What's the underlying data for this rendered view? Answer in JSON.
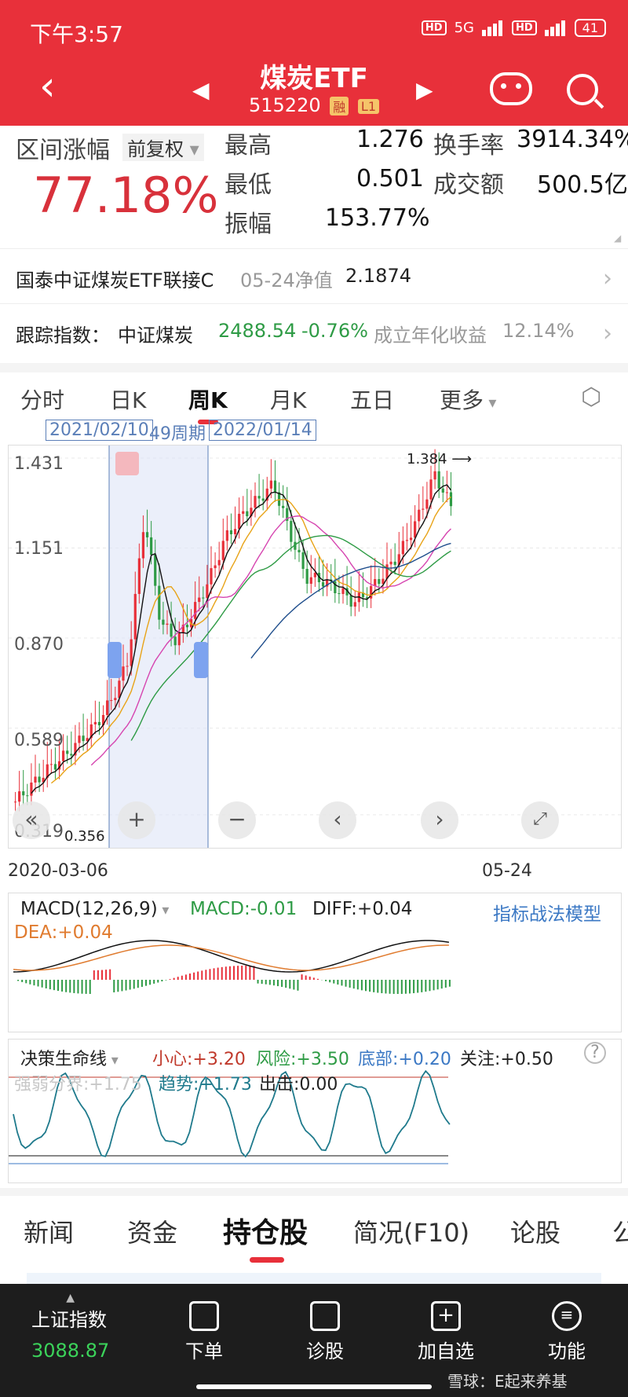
{
  "status": {
    "time": "下午3:57",
    "network1": "HD",
    "network2": "HD",
    "signal": "5G",
    "battery": "41"
  },
  "header": {
    "title": "煤炭ETF",
    "code": "515220",
    "tag1": "融",
    "tag2": "L1"
  },
  "stats": {
    "range_label": "区间涨幅",
    "adjust_label": "前复权",
    "range_change": "77.18%",
    "high_label": "最高",
    "high": "1.276",
    "low_label": "最低",
    "low": "0.501",
    "amp_label": "振幅",
    "amp": "153.77%",
    "turnover_label": "换手率",
    "turnover": "3914.34%",
    "amount_label": "成交额",
    "amount": "500.5亿"
  },
  "fund_row": {
    "name": "国泰中证煤炭ETF联接C",
    "date_label": "05-24净值",
    "nav": "2.1874"
  },
  "index_row": {
    "label": "跟踪指数：",
    "name": "中证煤炭",
    "value": "2488.54",
    "change": "-0.76%",
    "yield_label": "成立年化收益",
    "yield": "12.14%"
  },
  "tabs": [
    "分时",
    "日K",
    "周K",
    "月K",
    "五日",
    "更多"
  ],
  "active_tab": "周K",
  "range": {
    "start": "2021/02/10",
    "weeks": "49周期",
    "end": "2022/01/14"
  },
  "chart": {
    "y_ticks": [
      "1.431",
      "1.151",
      "0.870",
      "0.589",
      "0.319"
    ],
    "peak_label": "1.384",
    "low_label": "0.356",
    "x_start": "2020-03-06",
    "x_end": "05-24",
    "zoom_in": "+",
    "zoom_out": "−",
    "left": "‹",
    "right": "›",
    "colors": {
      "up": "#e8303a",
      "down": "#2e9b45",
      "selection": "#dde4f7"
    }
  },
  "chart_data": {
    "type": "candlestick",
    "x_start": "2020-03-06",
    "x_end": "05-24",
    "ylim": [
      0.319,
      1.431
    ],
    "y_ticks": [
      1.431,
      1.151,
      0.87,
      0.589,
      0.319
    ],
    "annotations": [
      {
        "text": "1.384",
        "value": 1.384
      },
      {
        "text": "0.356",
        "value": 0.356
      }
    ],
    "close_approx": [
      0.36,
      0.41,
      0.46,
      0.5,
      0.55,
      0.6,
      0.68,
      0.8,
      1.25,
      0.92,
      0.86,
      0.95,
      1.05,
      1.18,
      1.25,
      1.3,
      1.35,
      1.2,
      1.06,
      1.05,
      1.02,
      0.98,
      1.02,
      1.08,
      1.15,
      1.25,
      1.38,
      1.28
    ]
  },
  "macd": {
    "name": "MACD(12,26,9)",
    "macd": "MACD:-0.01",
    "diff": "DIFF:+0.04",
    "dea": "DEA:+0.04",
    "model": "指标战法模型"
  },
  "life": {
    "name": "决策生命线",
    "care": "小心:+3.20",
    "risk": "风险:+3.50",
    "bottom": "底部:+0.20",
    "watch": "关注:+0.50",
    "split": "强弱分界:+1.75",
    "trend": "趋势:+1.73",
    "exit": "出击:0.00"
  },
  "bottom_tabs": [
    "新闻",
    "资金",
    "持仓股",
    "简况(F10)",
    "论股",
    "公"
  ],
  "active_bottom_tab": "持仓股",
  "nav": {
    "index_name": "上证指数",
    "index_value": "3088.87",
    "items": [
      "下单",
      "诊股",
      "加自选",
      "功能"
    ],
    "watermark": "雪球：E起来养基"
  }
}
